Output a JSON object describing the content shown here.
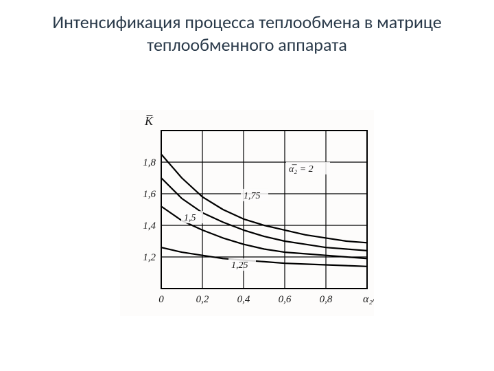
{
  "title": "Интенсификация процесса теплообмена в матрице теплообменного аппарата",
  "chart": {
    "type": "line",
    "background_color": "#fdfcfb",
    "plot_border_color": "#000000",
    "plot_border_width": 2,
    "grid_color": "#000000",
    "grid_width": 1.2,
    "line_color": "#000000",
    "line_width": 2.2,
    "tick_font_size": 15,
    "label_font_size": 16,
    "curve_label_font_size": 14,
    "y_axis_title": "K̅",
    "x_axis_title": "α₂/α₁",
    "x": {
      "min": 0,
      "max": 1.0,
      "ticks": [
        0,
        0.2,
        0.4,
        0.6,
        0.8
      ],
      "tick_labels": [
        "0",
        "0,2",
        "0,4",
        "0,6",
        "0,8"
      ]
    },
    "y": {
      "min": 1.0,
      "max": 2.0,
      "ticks": [
        1.2,
        1.4,
        1.6,
        1.8
      ],
      "tick_labels": [
        "1,2",
        "1,4",
        "1,6",
        "1,8"
      ]
    },
    "series": [
      {
        "label": "α̅₂ = 2",
        "label_xy": [
          0.62,
          1.74
        ],
        "points": [
          [
            0.0,
            1.85
          ],
          [
            0.1,
            1.7
          ],
          [
            0.2,
            1.58
          ],
          [
            0.3,
            1.5
          ],
          [
            0.4,
            1.44
          ],
          [
            0.5,
            1.4
          ],
          [
            0.6,
            1.37
          ],
          [
            0.7,
            1.34
          ],
          [
            0.8,
            1.32
          ],
          [
            0.9,
            1.3
          ],
          [
            1.0,
            1.29
          ]
        ]
      },
      {
        "label": "1,75",
        "label_xy": [
          0.4,
          1.57
        ],
        "points": [
          [
            0.0,
            1.7
          ],
          [
            0.1,
            1.57
          ],
          [
            0.2,
            1.48
          ],
          [
            0.3,
            1.42
          ],
          [
            0.4,
            1.37
          ],
          [
            0.5,
            1.33
          ],
          [
            0.6,
            1.3
          ],
          [
            0.7,
            1.28
          ],
          [
            0.8,
            1.26
          ],
          [
            0.9,
            1.25
          ],
          [
            1.0,
            1.24
          ]
        ]
      },
      {
        "label": "1,5",
        "label_xy": [
          0.11,
          1.43
        ],
        "points": [
          [
            0.0,
            1.52
          ],
          [
            0.1,
            1.43
          ],
          [
            0.2,
            1.37
          ],
          [
            0.3,
            1.32
          ],
          [
            0.4,
            1.28
          ],
          [
            0.5,
            1.25
          ],
          [
            0.6,
            1.23
          ],
          [
            0.7,
            1.22
          ],
          [
            0.8,
            1.21
          ],
          [
            0.9,
            1.2
          ],
          [
            1.0,
            1.19
          ]
        ]
      },
      {
        "label": "1,25",
        "label_xy": [
          0.34,
          1.13
        ],
        "points": [
          [
            0.0,
            1.26
          ],
          [
            0.1,
            1.23
          ],
          [
            0.2,
            1.21
          ],
          [
            0.3,
            1.19
          ],
          [
            0.4,
            1.18
          ],
          [
            0.5,
            1.17
          ],
          [
            0.6,
            1.16
          ],
          [
            0.7,
            1.155
          ],
          [
            0.8,
            1.15
          ],
          [
            0.9,
            1.145
          ],
          [
            1.0,
            1.14
          ]
        ]
      }
    ]
  }
}
